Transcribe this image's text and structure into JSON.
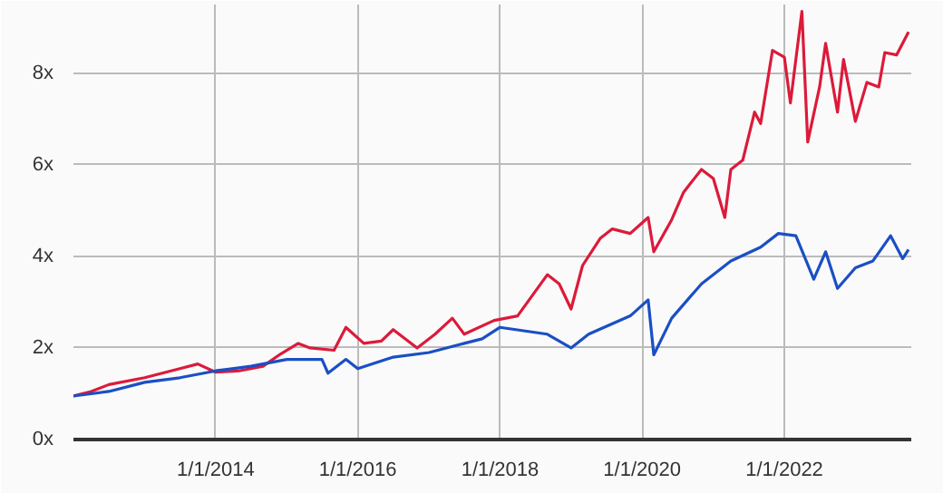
{
  "chart_data": {
    "type": "line",
    "grid": true,
    "xlim": [
      "2012-01-01",
      "2023-10-15"
    ],
    "xticks": [
      {
        "value": "2014-01-01",
        "label": "1/1/2014"
      },
      {
        "value": "2016-01-01",
        "label": "1/1/2016"
      },
      {
        "value": "2018-01-01",
        "label": "1/1/2018"
      },
      {
        "value": "2020-01-01",
        "label": "1/1/2020"
      },
      {
        "value": "2022-01-01",
        "label": "1/1/2022"
      }
    ],
    "ylim": [
      0,
      9.5
    ],
    "yticks": [
      {
        "value": 0,
        "label": "0x"
      },
      {
        "value": 2,
        "label": "2x"
      },
      {
        "value": 4,
        "label": "4x"
      },
      {
        "value": 6,
        "label": "6x"
      },
      {
        "value": 8,
        "label": "8x"
      }
    ],
    "series": [
      {
        "color": "#dc1a3a",
        "x": [
          "2012-01",
          "2012-04",
          "2012-07",
          "2013-01",
          "2013-07",
          "2013-10",
          "2014-01",
          "2014-05",
          "2014-09",
          "2014-12",
          "2015-03",
          "2015-05",
          "2015-09",
          "2015-11",
          "2016-02",
          "2016-05",
          "2016-07",
          "2016-11",
          "2017-02",
          "2017-05",
          "2017-07",
          "2017-12",
          "2018-04",
          "2018-09",
          "2018-11",
          "2019-01",
          "2019-03",
          "2019-06",
          "2019-08",
          "2019-11",
          "2020-02",
          "2020-03",
          "2020-06",
          "2020-08",
          "2020-11",
          "2021-01",
          "2021-03",
          "2021-04",
          "2021-06",
          "2021-08",
          "2021-09",
          "2021-11",
          "2022-01",
          "2022-02",
          "2022-04",
          "2022-05",
          "2022-07",
          "2022-08",
          "2022-10",
          "2022-11",
          "2023-01",
          "2023-03",
          "2023-05",
          "2023-06",
          "2023-08",
          "2023-10"
        ],
        "values": [
          0.95,
          1.05,
          1.2,
          1.35,
          1.55,
          1.65,
          1.47,
          1.5,
          1.6,
          1.87,
          2.1,
          2.0,
          1.95,
          2.45,
          2.1,
          2.15,
          2.4,
          2.0,
          2.3,
          2.65,
          2.3,
          2.6,
          2.7,
          3.6,
          3.4,
          2.85,
          3.8,
          4.4,
          4.6,
          4.5,
          4.85,
          4.1,
          4.8,
          5.4,
          5.9,
          5.7,
          4.85,
          5.9,
          6.1,
          7.15,
          6.9,
          8.5,
          8.35,
          7.35,
          9.35,
          6.5,
          7.7,
          8.65,
          7.15,
          8.3,
          6.95,
          7.8,
          7.7,
          8.45,
          8.4,
          8.9
        ]
      },
      {
        "color": "#1a4fc4",
        "x": [
          "2012-01",
          "2012-04",
          "2012-07",
          "2013-01",
          "2013-07",
          "2014-01",
          "2014-07",
          "2015-01",
          "2015-07",
          "2015-08",
          "2015-11",
          "2016-01",
          "2016-07",
          "2017-01",
          "2017-07",
          "2017-10",
          "2018-01",
          "2018-09",
          "2019-01",
          "2019-04",
          "2019-11",
          "2020-02",
          "2020-03",
          "2020-06",
          "2020-11",
          "2021-04",
          "2021-09",
          "2021-12",
          "2022-03",
          "2022-06",
          "2022-08",
          "2022-10",
          "2023-01",
          "2023-04",
          "2023-07",
          "2023-09",
          "2023-10"
        ],
        "values": [
          0.95,
          1.0,
          1.05,
          1.25,
          1.35,
          1.5,
          1.6,
          1.75,
          1.75,
          1.45,
          1.75,
          1.55,
          1.8,
          1.9,
          2.1,
          2.2,
          2.45,
          2.3,
          2.0,
          2.3,
          2.7,
          3.05,
          1.85,
          2.65,
          3.4,
          3.9,
          4.2,
          4.5,
          4.45,
          3.5,
          4.1,
          3.3,
          3.75,
          3.9,
          4.45,
          3.95,
          4.15
        ]
      }
    ]
  }
}
